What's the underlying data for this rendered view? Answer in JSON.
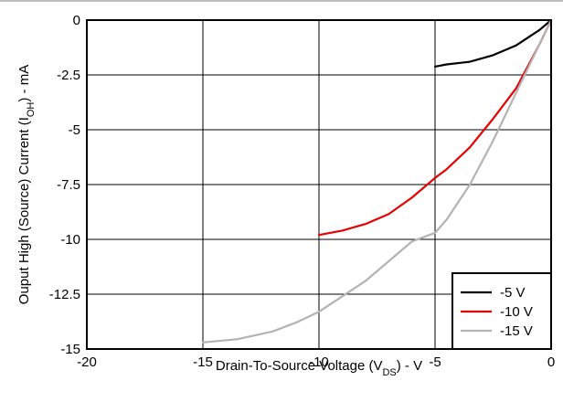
{
  "chart_data": {
    "type": "line",
    "xlabel": "Drain-To-Source Voltage (V",
    "xlabel_sub": "DS",
    "xlabel_end": ") - V",
    "ylabel": "Ouput High (Source) Current (I",
    "ylabel_sub": "OH",
    "ylabel_end": ") - mA",
    "xlim": [
      -20,
      0
    ],
    "ylim": [
      -15,
      0
    ],
    "x_ticks": [
      -20,
      -15,
      -10,
      -5,
      0
    ],
    "x_tick_labels": [
      "-20",
      "-15",
      "-10",
      "-5",
      "0"
    ],
    "y_ticks": [
      0,
      -2.5,
      -5,
      -7.5,
      -10,
      -12.5,
      -15
    ],
    "y_tick_labels": [
      "0",
      "-2.5",
      "-5",
      "-7.5",
      "-10",
      "-12.5",
      "-15"
    ],
    "grid": true,
    "legend_position": "bottom-right",
    "series": [
      {
        "name": "-5 V",
        "color": "#000000",
        "points": [
          [
            -5,
            -2.12
          ],
          [
            -4.5,
            -2.02
          ],
          [
            -3.5,
            -1.9
          ],
          [
            -2.5,
            -1.6
          ],
          [
            -1.5,
            -1.15
          ],
          [
            -0.5,
            -0.45
          ],
          [
            0,
            0
          ]
        ]
      },
      {
        "name": "-10 V",
        "color": "#e60000",
        "points": [
          [
            -10,
            -9.8
          ],
          [
            -9,
            -9.6
          ],
          [
            -8,
            -9.3
          ],
          [
            -7,
            -8.85
          ],
          [
            -6,
            -8.1
          ],
          [
            -5,
            -7.2
          ],
          [
            -4.5,
            -6.8
          ],
          [
            -3.5,
            -5.8
          ],
          [
            -2.5,
            -4.5
          ],
          [
            -1.5,
            -3.1
          ],
          [
            -0.5,
            -1.1
          ],
          [
            0,
            0
          ]
        ]
      },
      {
        "name": "-15 V",
        "color": "#b3b3b3",
        "points": [
          [
            -15,
            -14.7
          ],
          [
            -13.5,
            -14.55
          ],
          [
            -12,
            -14.2
          ],
          [
            -11,
            -13.8
          ],
          [
            -10,
            -13.3
          ],
          [
            -9,
            -12.6
          ],
          [
            -8,
            -11.9
          ],
          [
            -7,
            -11.0
          ],
          [
            -6,
            -10.1
          ],
          [
            -5,
            -9.7
          ],
          [
            -4.5,
            -9.1
          ],
          [
            -3.5,
            -7.5
          ],
          [
            -2.5,
            -5.5
          ],
          [
            -1.5,
            -3.3
          ],
          [
            -0.5,
            -1.1
          ],
          [
            0,
            0
          ]
        ]
      }
    ]
  }
}
